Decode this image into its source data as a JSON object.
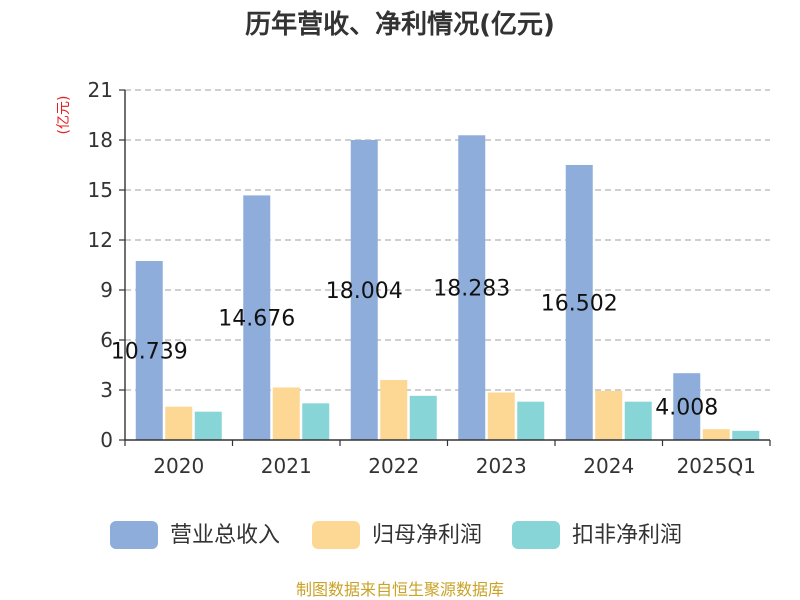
{
  "chart_data": {
    "type": "bar",
    "title": "历年营收、净利情况(亿元)",
    "unit_label": "(亿元)",
    "categories": [
      "2020",
      "2021",
      "2022",
      "2023",
      "2024",
      "2025Q1"
    ],
    "series": [
      {
        "name": "营业总收入",
        "color": "#8eadda",
        "values": [
          10.739,
          14.676,
          18.004,
          18.283,
          16.502,
          4.008
        ],
        "labels": [
          "10.739",
          "14.676",
          "18.004",
          "18.283",
          "16.502",
          "4.008"
        ]
      },
      {
        "name": "归母净利润",
        "color": "#fdd794",
        "values": [
          2.0,
          3.15,
          3.6,
          2.85,
          2.95,
          0.65
        ]
      },
      {
        "name": "扣非净利润",
        "color": "#88d5d8",
        "values": [
          1.7,
          2.2,
          2.65,
          2.3,
          2.3,
          0.55
        ]
      }
    ],
    "y_ticks": [
      "0",
      "3",
      "6",
      "9",
      "12",
      "15",
      "18",
      "21"
    ],
    "ylim": [
      0,
      21
    ],
    "grid": true,
    "legend_position": "bottom"
  },
  "source": "制图数据来自恒生聚源数据库"
}
